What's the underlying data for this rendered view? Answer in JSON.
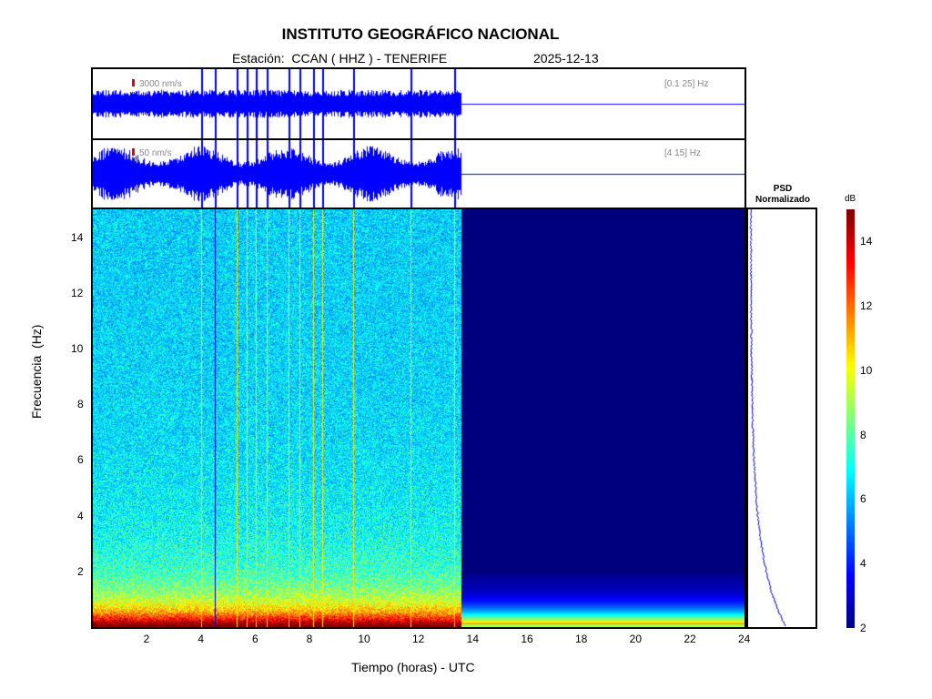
{
  "header": {
    "title": "INSTITUTO GEOGRÁFICO NACIONAL",
    "station": "Estación:  CCAN ( HHZ ) - TENERIFE",
    "date": "2025-12-13"
  },
  "waveforms": [
    {
      "amplitude": "3000 nm/s",
      "band": "[0.1 25] Hz"
    },
    {
      "amplitude": "50 nm/s",
      "band": "[4 15] Hz"
    }
  ],
  "psd": {
    "title_line1": "PSD",
    "title_line2": "Normalizado"
  },
  "chart_data": {
    "type": "heatmap",
    "title": "INSTITUTO GEOGRÁFICO NACIONAL",
    "xlabel": "Tiempo (horas) - UTC",
    "ylabel": "Frecuencia  (Hz)",
    "xlim": [
      0,
      24
    ],
    "ylim": [
      0,
      15
    ],
    "xticks": [
      2,
      4,
      6,
      8,
      10,
      12,
      14,
      16,
      18,
      20,
      22,
      24
    ],
    "yticks": [
      2,
      4,
      6,
      8,
      10,
      12,
      14
    ],
    "data_end_hour": 13.55,
    "event_hours": [
      4.0,
      4.5,
      5.3,
      5.65,
      6.0,
      6.4,
      7.2,
      7.6,
      8.1,
      8.45,
      9.6,
      11.7,
      13.3
    ],
    "colorbar": {
      "label": "dB",
      "range": [
        2,
        15
      ],
      "ticks": [
        2,
        4,
        6,
        8,
        10,
        12,
        14
      ]
    }
  }
}
